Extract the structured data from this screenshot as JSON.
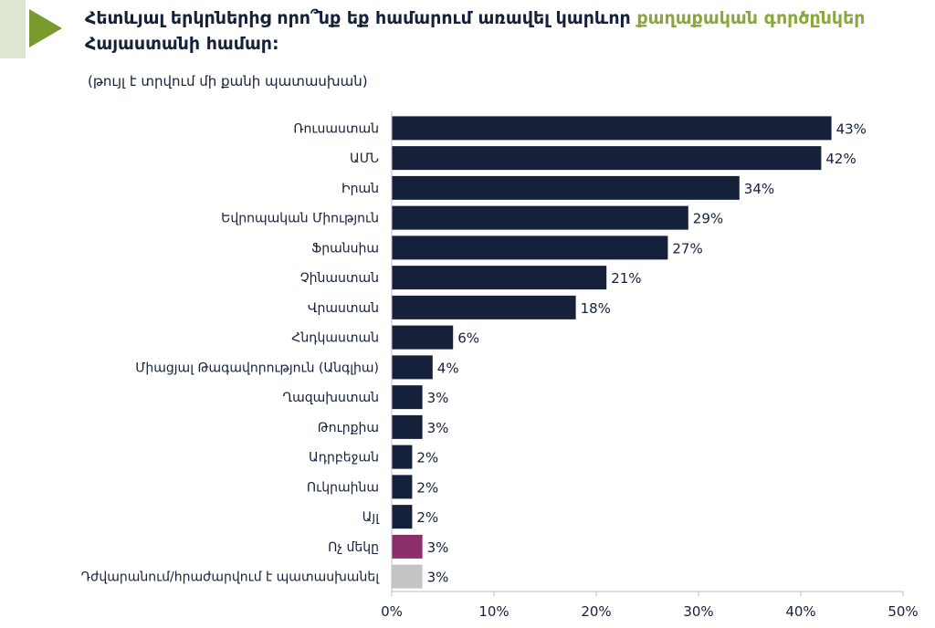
{
  "title": {
    "part1": "Հետևյալ երկրներից որո՞նք եք համարում առավել կարևոր ",
    "highlight": "քաղաքական գործընկեր",
    "part2": " Հայաստանի համար:",
    "highlight_color": "#8aa83a"
  },
  "subtitle": "(թույլ է տրվում մի քանի պատասխան)",
  "chart_data": {
    "type": "bar",
    "orientation": "horizontal",
    "categories": [
      "Ռուսաստան",
      "ԱՄՆ",
      "Իրան",
      "Եվրոպական Միություն",
      "Ֆրանսիա",
      "Չինաստան",
      "Վրաստան",
      "Հնդկաստան",
      "Միացյալ Թագավորություն (Անգլիա)",
      "Ղազախստան",
      "Թուրքիա",
      "Ադրբեջան",
      "Ուկրաինա",
      "Այլ",
      "Ոչ մեկը",
      "Դժվարանում/հրաժարվում է պատասխանել"
    ],
    "values": [
      43,
      42,
      34,
      29,
      27,
      21,
      18,
      6,
      4,
      3,
      3,
      2,
      2,
      2,
      3,
      3
    ],
    "value_labels": [
      "43%",
      "42%",
      "34%",
      "29%",
      "27%",
      "21%",
      "18%",
      "6%",
      "4%",
      "3%",
      "3%",
      "2%",
      "2%",
      "2%",
      "3%",
      "3%"
    ],
    "bar_colors": [
      "#15203a",
      "#15203a",
      "#15203a",
      "#15203a",
      "#15203a",
      "#15203a",
      "#15203a",
      "#15203a",
      "#15203a",
      "#15203a",
      "#15203a",
      "#15203a",
      "#15203a",
      "#15203a",
      "#8b2f6b",
      "#c4c4c4"
    ],
    "xlim": [
      0,
      50
    ],
    "xticks": [
      0,
      10,
      20,
      30,
      40,
      50
    ],
    "xtick_labels": [
      "0%",
      "10%",
      "20%",
      "30%",
      "40%",
      "50%"
    ],
    "grid": false,
    "legend": "none"
  },
  "colors": {
    "marker": "#7a9a2e",
    "text": "#15203a",
    "axis": "#bfbfbf"
  }
}
